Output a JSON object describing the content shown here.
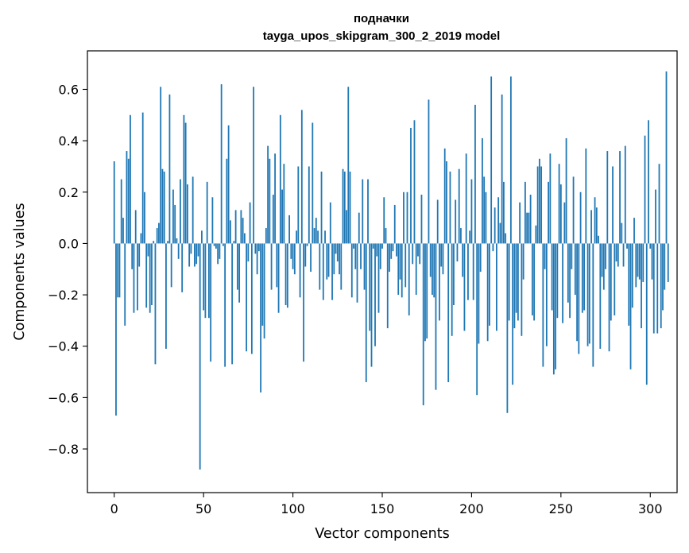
{
  "chart_data": {
    "type": "bar",
    "title": "подначки",
    "subtitle": "tayga_upos_skipgram_300_2_2019 model",
    "xlabel": "Vector components",
    "ylabel": "Components values",
    "xlim": [
      -15,
      315
    ],
    "ylim": [
      -0.97,
      0.75
    ],
    "xticks": [
      0,
      50,
      100,
      150,
      200,
      250,
      300
    ],
    "yticks": [
      0.6,
      0.4,
      0.2,
      0.0,
      -0.2,
      -0.4,
      -0.6,
      -0.8
    ],
    "ytick_labels": [
      "0.6",
      "0.4",
      "0.2",
      "0.0",
      "−0.2",
      "−0.4",
      "−0.6",
      "−0.8"
    ],
    "xtick_labels": [
      "0",
      "50",
      "100",
      "150",
      "200",
      "250",
      "300"
    ],
    "bar_color": "#1f77b4",
    "grid": false,
    "values": [
      0.32,
      -0.67,
      -0.21,
      -0.21,
      0.25,
      0.1,
      -0.32,
      0.36,
      0.33,
      0.5,
      -0.1,
      -0.27,
      0.13,
      -0.26,
      -0.09,
      0.04,
      0.51,
      0.2,
      -0.25,
      -0.05,
      -0.27,
      -0.24,
      0.01,
      -0.47,
      0.06,
      0.08,
      0.61,
      0.29,
      0.28,
      -0.41,
      0.01,
      0.58,
      -0.17,
      0.21,
      0.15,
      0.02,
      -0.06,
      0.25,
      -0.19,
      0.5,
      0.47,
      0.23,
      -0.09,
      -0.04,
      0.26,
      -0.09,
      -0.08,
      -0.05,
      -0.88,
      0.05,
      -0.26,
      -0.29,
      0.24,
      -0.29,
      -0.46,
      0.18,
      -0.01,
      -0.02,
      -0.08,
      -0.06,
      0.62,
      -0.01,
      -0.48,
      0.33,
      0.46,
      0.09,
      -0.47,
      0.01,
      0.13,
      -0.18,
      -0.23,
      0.13,
      0.1,
      0.04,
      -0.42,
      -0.07,
      0.16,
      -0.43,
      0.61,
      -0.04,
      -0.12,
      -0.03,
      -0.58,
      -0.32,
      -0.37,
      0.06,
      0.38,
      0.33,
      -0.18,
      0.19,
      0.35,
      -0.17,
      -0.27,
      0.5,
      0.21,
      0.31,
      -0.24,
      -0.25,
      0.11,
      -0.06,
      -0.1,
      -0.12,
      0.05,
      0.3,
      -0.21,
      0.52,
      -0.46,
      -0.09,
      -0.01,
      0.3,
      -0.11,
      0.47,
      0.06,
      0.1,
      0.05,
      -0.18,
      0.28,
      -0.22,
      0.05,
      -0.14,
      -0.13,
      0.16,
      -0.22,
      -0.12,
      -0.04,
      -0.07,
      -0.12,
      -0.18,
      0.29,
      0.28,
      0.13,
      0.61,
      0.28,
      -0.21,
      -0.02,
      -0.1,
      -0.23,
      0.12,
      -0.1,
      0.25,
      -0.18,
      -0.54,
      0.25,
      -0.34,
      -0.48,
      -0.02,
      -0.4,
      -0.05,
      -0.27,
      -0.1,
      -0.02,
      0.18,
      0.06,
      -0.33,
      -0.11,
      -0.06,
      -0.03,
      0.15,
      -0.05,
      -0.2,
      -0.14,
      -0.21,
      0.2,
      -0.17,
      0.2,
      -0.28,
      0.45,
      -0.08,
      0.48,
      -0.2,
      -0.05,
      -0.08,
      0.19,
      -0.63,
      -0.38,
      -0.37,
      0.56,
      -0.13,
      -0.2,
      -0.21,
      -0.57,
      0.17,
      -0.3,
      -0.09,
      -0.12,
      0.37,
      0.32,
      -0.54,
      0.28,
      -0.36,
      -0.24,
      0.17,
      -0.07,
      0.29,
      0.06,
      -0.13,
      -0.34,
      0.35,
      -0.22,
      0.05,
      0.25,
      -0.22,
      0.54,
      -0.59,
      -0.39,
      -0.11,
      0.41,
      0.26,
      0.2,
      -0.38,
      -0.32,
      0.65,
      -0.03,
      0.14,
      -0.34,
      0.18,
      0.08,
      0.58,
      0.24,
      0.04,
      -0.66,
      -0.3,
      0.65,
      -0.55,
      -0.33,
      -0.27,
      -0.3,
      0.16,
      -0.36,
      -0.14,
      0.24,
      0.12,
      0.12,
      0.19,
      -0.28,
      -0.3,
      0.07,
      0.3,
      0.33,
      0.3,
      -0.48,
      -0.1,
      -0.4,
      0.24,
      0.35,
      -0.26,
      -0.51,
      -0.49,
      -0.29,
      0.31,
      0.23,
      -0.31,
      0.16,
      0.41,
      -0.23,
      -0.29,
      -0.1,
      0.26,
      -0.2,
      -0.38,
      -0.43,
      0.2,
      -0.27,
      -0.26,
      0.37,
      -0.4,
      -0.39,
      0.13,
      -0.48,
      0.18,
      0.14,
      0.03,
      -0.41,
      -0.13,
      -0.18,
      -0.1,
      0.36,
      -0.42,
      -0.3,
      0.3,
      -0.28,
      -0.07,
      -0.09,
      0.36,
      0.08,
      -0.09,
      0.38,
      -0.02,
      -0.32,
      -0.49,
      -0.25,
      0.1,
      -0.17,
      -0.13,
      -0.14,
      -0.33,
      -0.15,
      0.42,
      -0.55,
      0.48,
      -0.02,
      -0.14,
      -0.35,
      0.21,
      -0.35,
      0.31,
      -0.33,
      -0.26,
      -0.18,
      0.67,
      -0.15
    ]
  }
}
